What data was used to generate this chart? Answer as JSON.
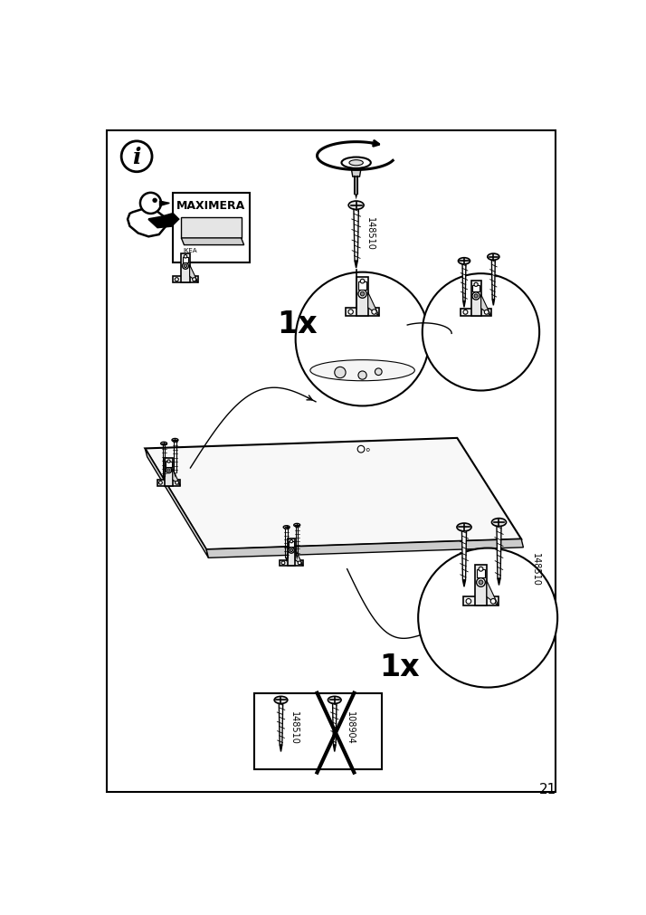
{
  "page_number": "21",
  "bg_color": "#ffffff",
  "part_number_screw": "148510",
  "part_number_crossed": "108904",
  "count_top": "1x",
  "count_bottom": "1x",
  "maximera_label": "MAXIMERA"
}
